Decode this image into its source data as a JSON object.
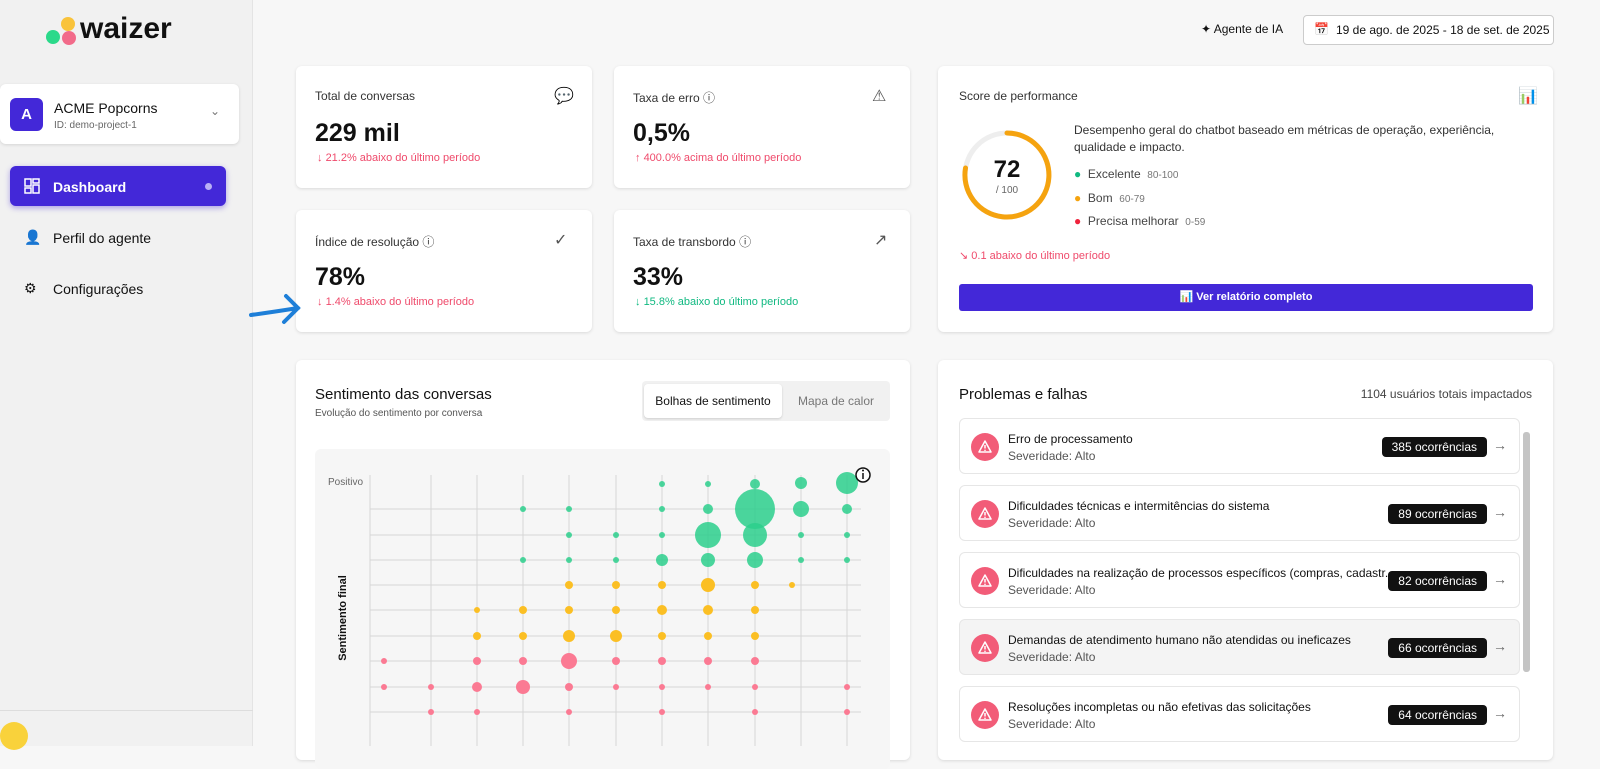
{
  "logo": "waizer",
  "header": {
    "ai_agent": "Agente de IA",
    "date_range": "19 de ago. de 2025 - 18 de set. de 2025"
  },
  "sidebar": {
    "project": {
      "initial": "A",
      "name": "ACME Popcorns",
      "id": "ID: demo-project-1"
    },
    "nav": [
      "Dashboard",
      "Perfil do agente",
      "Configurações"
    ]
  },
  "metrics": [
    {
      "label": "Total de conversas",
      "value": "229 mil",
      "change": "21.2% abaixo do último período"
    },
    {
      "label": "Taxa de erro",
      "value": "0,5%",
      "change": "400.0% acima do último período"
    },
    {
      "label": "Índice de resolução",
      "value": "78%",
      "change": "1.4% abaixo do último período"
    },
    {
      "label": "Taxa de transbordo",
      "value": "33%",
      "change": "15.8% abaixo do último período"
    }
  ],
  "performance": {
    "title": "Score de performance",
    "score": "72",
    "max": "/ 100",
    "description": "Desempenho geral do chatbot baseado em métricas de operação, experiência, qualidade e impacto.",
    "legend": [
      {
        "label": "Excelente",
        "range": "80-100"
      },
      {
        "label": "Bom",
        "range": "60-79"
      },
      {
        "label": "Precisa melhorar",
        "range": "0-59"
      }
    ],
    "change": "0.1 abaixo do último período",
    "button": "Ver relatório completo"
  },
  "sentiment": {
    "title": "Sentimento das conversas",
    "subtitle": "Evolução do sentimento por conversa",
    "tabs": [
      "Bolhas de sentimento",
      "Mapa de calor"
    ],
    "y_top_label": "Positivo",
    "y_axis_label": "Sentimento final"
  },
  "issues": {
    "title": "Problemas e falhas",
    "impacted": "1104 usuários totais impactados",
    "items": [
      {
        "title": "Erro de processamento",
        "severity": "Severidade: Alto",
        "count": "385 ocorrências"
      },
      {
        "title": "Dificuldades técnicas e intermitências do sistema",
        "severity": "Severidade: Alto",
        "count": "89 ocorrências"
      },
      {
        "title": "Dificuldades na realização de processos específicos (compras, cadastr...",
        "severity": "Severidade: Alto",
        "count": "82 ocorrências"
      },
      {
        "title": "Demandas de atendimento humano não atendidas ou ineficazes",
        "severity": "Severidade: Alto",
        "count": "66 ocorrências"
      },
      {
        "title": "Resoluções incompletas ou não efetivas das solicitações",
        "severity": "Severidade: Alto",
        "count": "64 ocorrências"
      }
    ]
  }
}
